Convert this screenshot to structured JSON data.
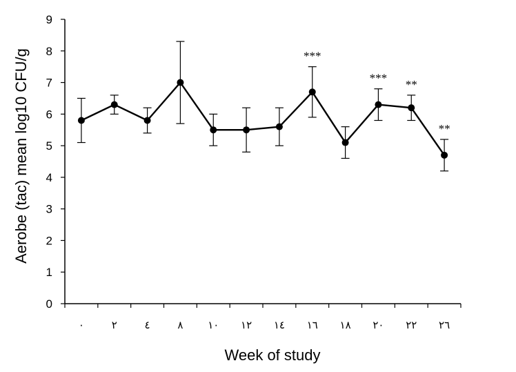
{
  "chart_data": {
    "type": "line",
    "xlabel": "Week of study",
    "ylabel": "Aerobe (tac) mean log10 CFU/g",
    "ylim": [
      0,
      9
    ],
    "yticks": [
      "0",
      "1",
      "2",
      "3",
      "4",
      "5",
      "6",
      "7",
      "8",
      "9"
    ],
    "grid": false,
    "legend": "none",
    "categories": [
      "٠",
      "٢",
      "٤",
      "٨",
      "١٠",
      "١٢",
      "١٤",
      "١٦",
      "١٨",
      "٢٠",
      "٢٢",
      "٢٦"
    ],
    "series": [
      {
        "values": [
          5.8,
          6.3,
          5.8,
          7.0,
          5.5,
          5.5,
          5.6,
          6.7,
          5.1,
          6.3,
          6.2,
          4.7
        ],
        "err_high": [
          6.5,
          6.6,
          6.2,
          8.3,
          6.0,
          6.2,
          6.2,
          7.5,
          5.6,
          6.8,
          6.6,
          5.2
        ],
        "err_low": [
          5.1,
          6.0,
          5.4,
          5.7,
          5.0,
          4.8,
          5.0,
          5.9,
          4.6,
          5.8,
          5.8,
          4.2
        ],
        "color": "#000000"
      }
    ],
    "annotations": [
      {
        "index": 7,
        "text": "***"
      },
      {
        "index": 9,
        "text": "***"
      },
      {
        "index": 10,
        "text": "**"
      },
      {
        "index": 11,
        "text": "**"
      }
    ]
  }
}
